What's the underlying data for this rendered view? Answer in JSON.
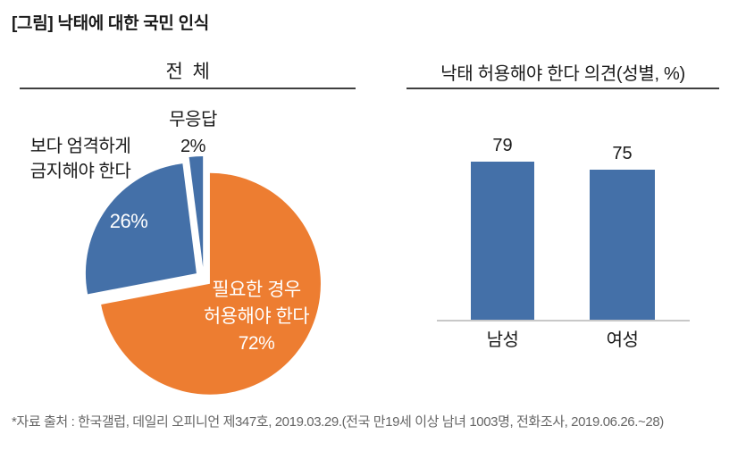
{
  "title": "[그림] 낙태에 대한 국민 인식",
  "footer": "*자료 출처 : 한국갤럽, 데일리 오피니언 제347호, 2019.03.29.(전국 만19세 이상 남녀 1003명, 전화조사, 2019.06.26.~28)",
  "colors": {
    "blue": "#4470A8",
    "orange": "#ED7D31",
    "rule": "#3F3F3F",
    "axis": "#C8C8C8",
    "text": "#1A1A1A",
    "footer_text": "#666666",
    "label_on_slice": "#FFFFFF"
  },
  "chart_data": [
    {
      "type": "pie",
      "title": "전  체",
      "unit": "%",
      "start_angle_deg": 0,
      "clockwise": true,
      "exploded": true,
      "slices": [
        {
          "label": "필요한 경우 허용해야 한다",
          "value": 72,
          "color": "#ED7D31",
          "label_lines": [
            "필요한 경우",
            "허용해야 한다",
            "72%"
          ],
          "label_position": "inside"
        },
        {
          "label": "보다 엄격하게 금지해야 한다",
          "value": 26,
          "color": "#4470A8",
          "label_lines": [
            "보다 엄격하게",
            "금지해야 한다"
          ],
          "pct_label": "26%",
          "label_position": "outside-left"
        },
        {
          "label": "무응답",
          "value": 2,
          "color": "#4470A8",
          "label_lines": [
            "무응답",
            "2%"
          ],
          "label_position": "outside-top"
        }
      ]
    },
    {
      "type": "bar",
      "title": "낙태 허용해야 한다 의견(성별, %)",
      "categories": [
        "남성",
        "여성"
      ],
      "values": [
        79,
        75
      ],
      "data_labels": [
        "79",
        "75"
      ],
      "ylim": [
        0,
        100
      ],
      "bar_color": "#4470A8",
      "grid": false,
      "legend": false
    }
  ]
}
